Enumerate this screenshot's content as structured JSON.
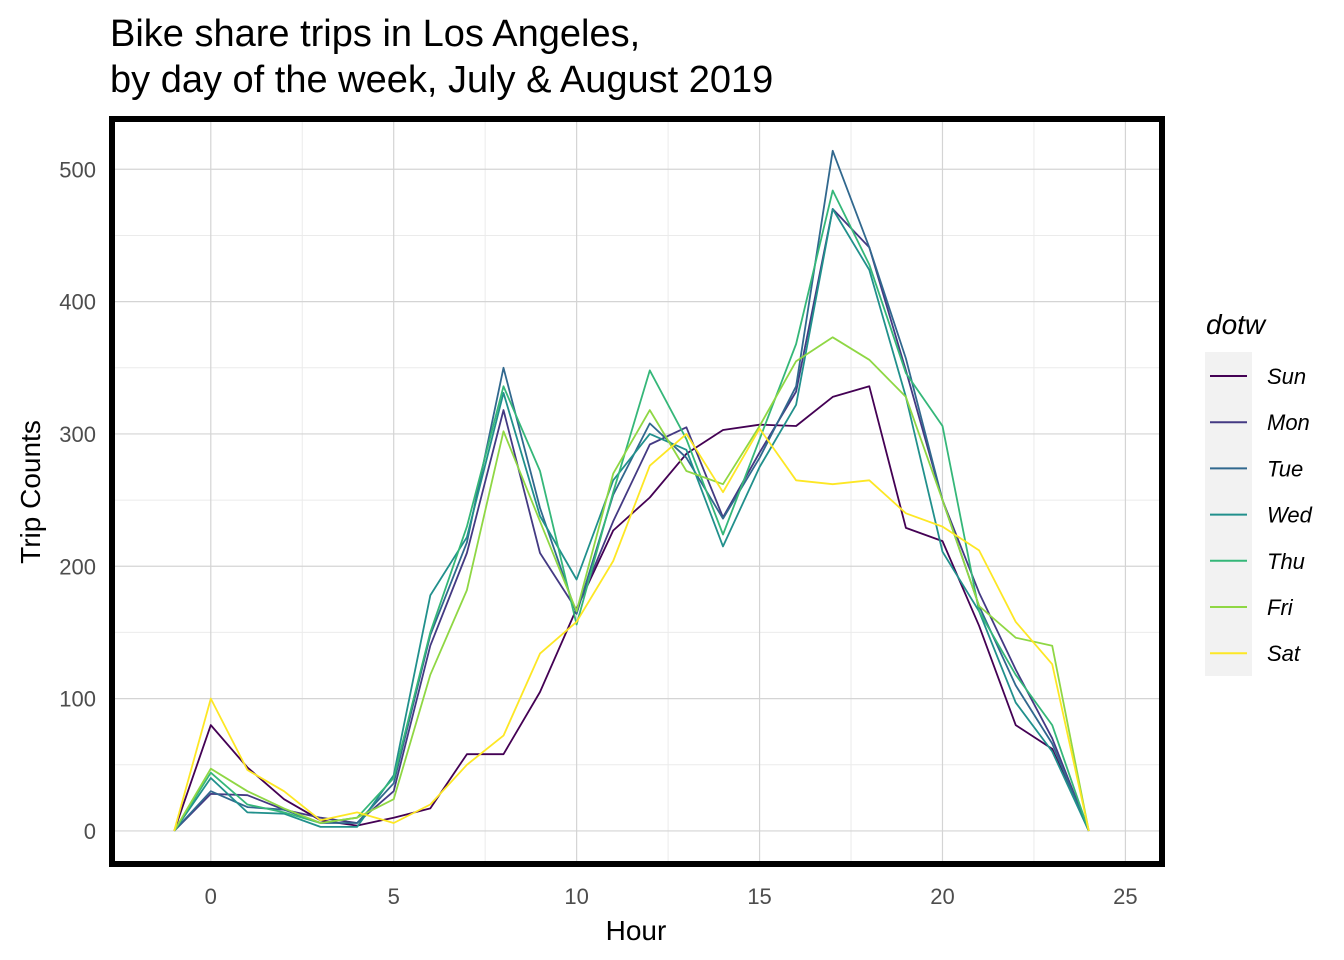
{
  "chart_data": {
    "type": "line",
    "title_lines": [
      "Bike share trips in Los Angeles,",
      "by day of the week,  July & August 2019"
    ],
    "xlabel": "Hour",
    "ylabel": "Trip Counts",
    "xlim": [
      -2.7,
      26.0
    ],
    "ylim": [
      -25,
      538
    ],
    "x_ticks": [
      0,
      5,
      10,
      15,
      20,
      25
    ],
    "y_ticks": [
      0,
      100,
      200,
      300,
      400,
      500
    ],
    "grid": true,
    "legend": {
      "title": "dotw",
      "position": "right"
    },
    "x": [
      -1,
      0,
      1,
      2,
      3,
      4,
      5,
      6,
      7,
      8,
      9,
      10,
      11,
      12,
      13,
      14,
      15,
      16,
      17,
      18,
      19,
      20,
      21,
      22,
      23,
      24
    ],
    "series": [
      {
        "name": "Sun",
        "color": "#440154",
        "values": [
          0,
          80,
          48,
          24,
          8,
          4,
          10,
          17,
          58,
          58,
          105,
          168,
          227,
          252,
          285,
          303,
          307,
          306,
          328,
          336,
          229,
          219,
          155,
          80,
          62,
          0
        ]
      },
      {
        "name": "Mon",
        "color": "#443A83",
        "values": [
          0,
          28,
          27,
          16,
          10,
          6,
          30,
          140,
          210,
          318,
          210,
          167,
          234,
          292,
          305,
          237,
          286,
          332,
          470,
          441,
          348,
          250,
          180,
          122,
          70,
          0
        ]
      },
      {
        "name": "Tue",
        "color": "#31688E",
        "values": [
          0,
          30,
          18,
          16,
          6,
          6,
          36,
          148,
          218,
          350,
          244,
          164,
          254,
          308,
          282,
          236,
          282,
          336,
          514,
          441,
          357,
          250,
          170,
          110,
          66,
          0
        ]
      },
      {
        "name": "Wed",
        "color": "#21908C",
        "values": [
          0,
          40,
          14,
          13,
          3,
          3,
          42,
          178,
          222,
          331,
          238,
          190,
          265,
          300,
          288,
          215,
          275,
          322,
          470,
          424,
          328,
          211,
          166,
          97,
          60,
          0
        ]
      },
      {
        "name": "Thu",
        "color": "#35B779",
        "values": [
          0,
          44,
          20,
          14,
          6,
          10,
          40,
          150,
          230,
          336,
          272,
          156,
          256,
          348,
          296,
          224,
          296,
          368,
          484,
          428,
          346,
          306,
          166,
          118,
          80,
          0
        ]
      },
      {
        "name": "Fri",
        "color": "#8FD744",
        "values": [
          0,
          47,
          30,
          17,
          6,
          10,
          24,
          118,
          182,
          302,
          234,
          166,
          270,
          318,
          272,
          262,
          306,
          355,
          373,
          356,
          328,
          250,
          170,
          146,
          140,
          0
        ]
      },
      {
        "name": "Sat",
        "color": "#FDE725",
        "values": [
          0,
          100,
          46,
          30,
          8,
          14,
          6,
          20,
          50,
          72,
          134,
          158,
          204,
          276,
          300,
          256,
          304,
          265,
          262,
          265,
          240,
          230,
          212,
          158,
          126,
          0
        ]
      }
    ]
  }
}
